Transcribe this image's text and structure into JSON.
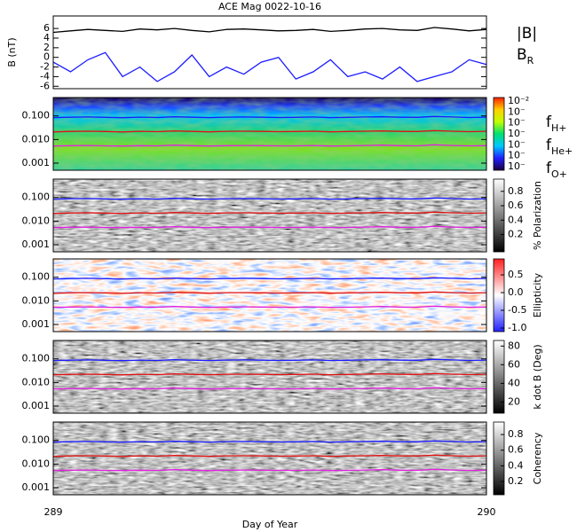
{
  "chart_data": [
    {
      "type": "line",
      "title": "ACE Mag 0022-10-16",
      "ylabel": "B (nT)",
      "x": [
        289,
        289.04,
        289.08,
        289.12,
        289.16,
        289.2,
        289.24,
        289.28,
        289.32,
        289.36,
        289.4,
        289.44,
        289.48,
        289.52,
        289.56,
        289.6,
        289.64,
        289.68,
        289.72,
        289.76,
        289.8,
        289.84,
        289.88,
        289.92,
        289.96,
        290
      ],
      "series": [
        {
          "name": "|B|",
          "color": "#000000",
          "values": [
            5.2,
            5.5,
            5.8,
            5.6,
            5.4,
            5.9,
            5.7,
            6.0,
            5.6,
            5.3,
            5.8,
            5.9,
            5.7,
            5.5,
            5.6,
            5.8,
            5.4,
            5.6,
            5.9,
            6.0,
            5.7,
            5.6,
            6.2,
            5.9,
            5.5,
            5.8
          ]
        },
        {
          "name": "B_R",
          "color": "#1a1aff",
          "values": [
            -1,
            -3,
            -0.5,
            1,
            -4,
            -2,
            -5,
            -3,
            0.5,
            -4,
            -2,
            -3.5,
            -1,
            0,
            -4.5,
            -3,
            -0.5,
            -4,
            -3,
            -4.5,
            -2,
            -5,
            -4,
            -3,
            -0.5,
            -1.5
          ]
        }
      ],
      "ylim": [
        -6.5,
        8.6
      ],
      "yticks": [
        6,
        4,
        2,
        0,
        -2,
        -4,
        -6
      ]
    },
    {
      "type": "spectrogram",
      "log_y": true,
      "ylim": [
        0.0005,
        0.6
      ],
      "yticks": [
        {
          "value": 0.1,
          "label": "0.100"
        },
        {
          "value": 0.01,
          "label": "0.010"
        },
        {
          "value": 0.001,
          "label": "0.001"
        }
      ],
      "x": [
        289,
        289.04,
        289.08,
        289.12,
        289.16,
        289.2,
        289.24,
        289.28,
        289.32,
        289.36,
        289.4,
        289.44,
        289.48,
        289.52,
        289.56,
        289.6,
        289.64,
        289.68,
        289.72,
        289.76,
        289.8,
        289.84,
        289.88,
        289.92,
        289.96,
        290
      ],
      "series": [
        {
          "name": "f_H+",
          "color": "#1a1aff",
          "values": [
            0.085,
            0.088,
            0.09,
            0.087,
            0.084,
            0.089,
            0.086,
            0.092,
            0.088,
            0.085,
            0.089,
            0.09,
            0.088,
            0.086,
            0.087,
            0.09,
            0.085,
            0.087,
            0.09,
            0.092,
            0.088,
            0.087,
            0.095,
            0.09,
            0.086,
            0.089
          ]
        },
        {
          "name": "f_He+",
          "color": "#e01010",
          "values": [
            0.021,
            0.022,
            0.0225,
            0.0218,
            0.021,
            0.0222,
            0.0215,
            0.023,
            0.022,
            0.0212,
            0.0222,
            0.0225,
            0.022,
            0.0215,
            0.0218,
            0.0225,
            0.0212,
            0.0218,
            0.0225,
            0.023,
            0.022,
            0.0218,
            0.0238,
            0.0225,
            0.0215,
            0.0222
          ]
        },
        {
          "name": "f_O+",
          "color": "#e020e0",
          "values": [
            0.0053,
            0.0055,
            0.0056,
            0.0054,
            0.0053,
            0.0055,
            0.0054,
            0.0058,
            0.0055,
            0.0053,
            0.0055,
            0.0056,
            0.0055,
            0.0054,
            0.0054,
            0.0056,
            0.0053,
            0.0054,
            0.0056,
            0.0058,
            0.0055,
            0.0054,
            0.006,
            0.0056,
            0.0054,
            0.0055
          ]
        }
      ],
      "colormap": [
        "#1a0040",
        "#2020ff",
        "#00c8ff",
        "#00e070",
        "#c0ff00",
        "#ffd000",
        "#ff2000"
      ],
      "cticks": [
        "10⁻²",
        "10⁻",
        "10⁻",
        "10⁻",
        "10⁻",
        "10⁻",
        "10⁻"
      ]
    },
    {
      "type": "spectrogram",
      "log_y": true,
      "ylim": [
        0.0005,
        0.6
      ],
      "yticks": [
        {
          "value": 0.1,
          "label": "0.100"
        },
        {
          "value": 0.01,
          "label": "0.010"
        },
        {
          "value": 0.001,
          "label": "0.001"
        }
      ],
      "colorbar_label": "% Polarization",
      "colormap": [
        "#000000",
        "#ffffff"
      ],
      "clim": [
        -0.04,
        0.97
      ],
      "cticks": [
        0.8,
        0.6,
        0.4,
        0.2
      ]
    },
    {
      "type": "spectrogram",
      "log_y": true,
      "ylim": [
        0.0005,
        0.6
      ],
      "yticks": [
        {
          "value": 0.1,
          "label": "0.100"
        },
        {
          "value": 0.01,
          "label": "0.010"
        },
        {
          "value": 0.001,
          "label": "0.001"
        }
      ],
      "colorbar_label": "Ellipticity",
      "colormap": [
        "#2020ff",
        "#ffffff",
        "#ff2020"
      ],
      "clim": [
        -1.1,
        0.95
      ],
      "cticks": [
        {
          "value": 0.5,
          "label": "0.5"
        },
        {
          "value": 0,
          "label": "0.0"
        },
        {
          "value": -0.5,
          "label": "-0.5"
        },
        {
          "value": -1,
          "label": "-1.0"
        }
      ]
    },
    {
      "type": "spectrogram",
      "log_y": true,
      "ylim": [
        0.0005,
        0.6
      ],
      "yticks": [
        {
          "value": 0.1,
          "label": "0.100"
        },
        {
          "value": 0.01,
          "label": "0.010"
        },
        {
          "value": 0.001,
          "label": "0.001"
        }
      ],
      "colorbar_label": "k dot B (Deg)",
      "colormap": [
        "#000000",
        "#ffffff"
      ],
      "clim": [
        8,
        86
      ],
      "cticks": [
        80,
        60,
        40,
        20
      ]
    },
    {
      "type": "spectrogram",
      "log_y": true,
      "ylim": [
        0.0005,
        0.6
      ],
      "yticks": [
        {
          "value": 0.1,
          "label": "0.100"
        },
        {
          "value": 0.01,
          "label": "0.010"
        },
        {
          "value": 0.001,
          "label": "0.001"
        }
      ],
      "colorbar_label": "Coherency",
      "colormap": [
        "#000000",
        "#ffffff"
      ],
      "clim": [
        0.03,
        0.96
      ],
      "cticks": [
        0.8,
        0.6,
        0.4,
        0.2
      ],
      "xlabel": "Day of Year",
      "xlim": [
        289,
        290
      ],
      "xticks": [
        289,
        290
      ]
    }
  ]
}
